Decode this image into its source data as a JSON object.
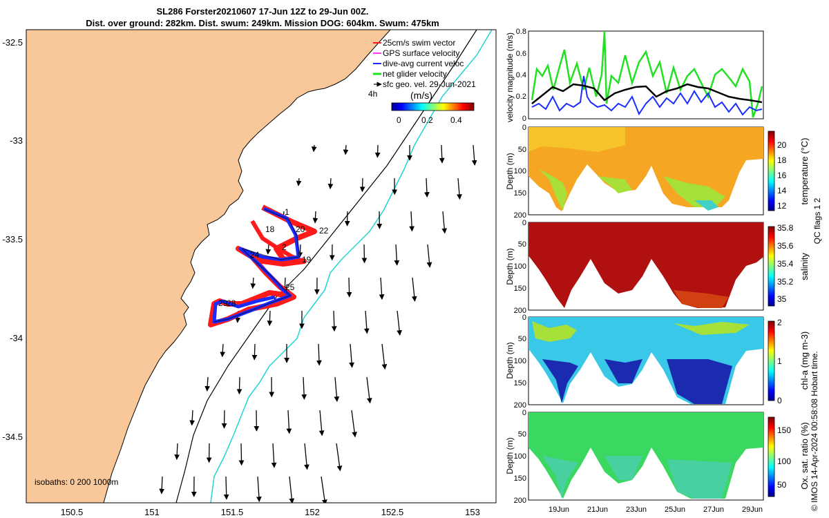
{
  "title": {
    "line1": "SL286 Forster20210607 17-Jun 12Z to 29-Jun 00Z.",
    "line2": "Dist. over ground: 282km. Dist. swum: 249km. Mission DOG: 604km. Swum: 475km"
  },
  "map": {
    "x_ticks": [
      "150.5",
      "151",
      "151.5",
      "152",
      "152.5",
      "153"
    ],
    "y_ticks": [
      "-32.5",
      "-33",
      "-33.5",
      "-34",
      "-34.5"
    ],
    "isobaths_label": "isobaths: 0   200  1000m",
    "legend": {
      "swim_vector": "25cm/s swim vector",
      "gps_velocity": "GPS surface velocity",
      "dive_current": "dive-avg current veloc",
      "net_velocity": "net glider velocity",
      "sfc_geo": "sfc geo. vel. 29-Jun-2021",
      "interval": "4h",
      "units": "(m/s)",
      "colorbar_ticks": [
        "0",
        "0.2",
        "0.4"
      ]
    },
    "track_day_labels": [
      "1",
      "18",
      "20",
      "22",
      "2",
      "24",
      "19",
      "25",
      "29",
      "28"
    ],
    "colors": {
      "land": "#f9c89a",
      "isobath_200": "#000000",
      "isobath_1000": "#22d3d3",
      "track_red": "#ff1a1a",
      "track_blue": "#1a2bff"
    }
  },
  "velocity_panel": {
    "ylabel": "velocity magnitude (m/s)",
    "y_ticks": [
      "0",
      "0.2",
      "0.4",
      "0.6",
      "0.8"
    ],
    "colors": {
      "net": "#22e022",
      "current": "#1a2bff",
      "swim": "#000000"
    }
  },
  "sections": [
    {
      "ylabel": "Depth (m)",
      "cbar_label": "temperature (°C)",
      "cbar_ticks": [
        "12",
        "14",
        "16",
        "18",
        "20"
      ]
    },
    {
      "ylabel": "Depth (m)",
      "cbar_label": "salinity",
      "cbar_ticks": [
        "35",
        "35.2",
        "35.4",
        "35.6",
        "35.8"
      ]
    },
    {
      "ylabel": "Depth (m)",
      "cbar_label": "chl-a (mg m-3)",
      "cbar_ticks": [
        "0",
        "1",
        "2"
      ]
    },
    {
      "ylabel": "Depth (m)",
      "cbar_label": "Ox. sat. ratio (%)",
      "cbar_ticks": [
        "50",
        "100",
        "150"
      ]
    }
  ],
  "depth_ticks": [
    "0",
    "50",
    "100",
    "150",
    "200"
  ],
  "date_ticks": [
    "19Jun",
    "21Jun",
    "23Jun",
    "25Jun",
    "27Jun",
    "29Jun"
  ],
  "qc_label": "QC flags 1  2",
  "credit": "© IMOS 14-Apr-2024 00:58:08 Hobart time."
}
